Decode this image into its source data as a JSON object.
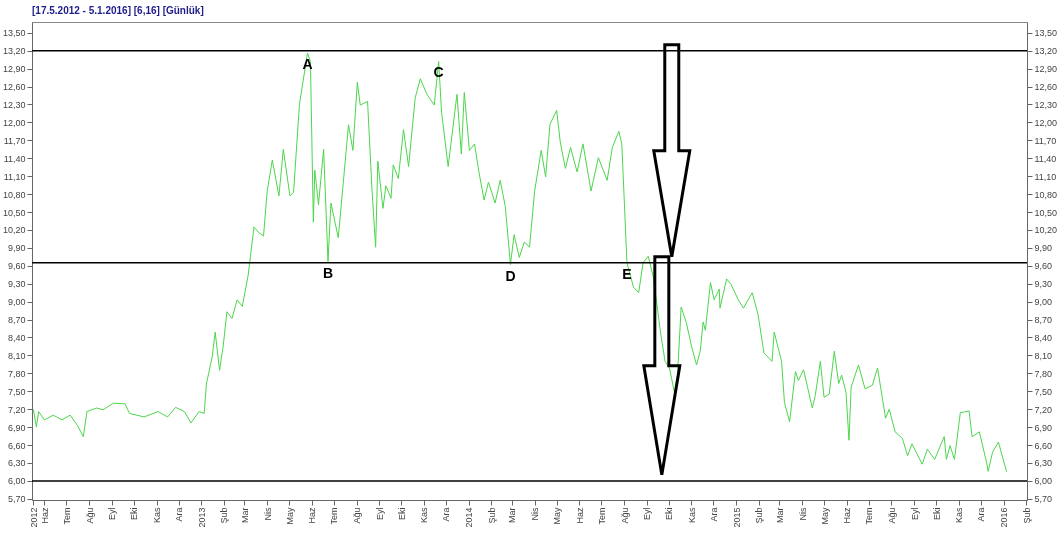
{
  "chart_data": {
    "type": "line",
    "title": "[17.5.2012 - 5.1.2016]  [6,16]  [Günlük]",
    "x": [
      "2012-05-17",
      "2012-05-21",
      "2012-05-24",
      "2012-06-01",
      "2012-06-13",
      "2012-06-25",
      "2012-07-06",
      "2012-07-16",
      "2012-07-24",
      "2012-07-29",
      "2012-08-11",
      "2012-08-20",
      "2012-09-03",
      "2012-09-19",
      "2012-09-25",
      "2012-10-15",
      "2012-11-03",
      "2012-11-16",
      "2012-11-27",
      "2012-12-09",
      "2012-12-18",
      "2012-12-29",
      "2013-01-05",
      "2013-01-08",
      "2013-01-16",
      "2013-01-20",
      "2013-01-26",
      "2013-01-31",
      "2013-02-05",
      "2013-02-12",
      "2013-02-19",
      "2013-02-26",
      "2013-03-06",
      "2013-03-14",
      "2013-03-20",
      "2013-03-27",
      "2013-04-01",
      "2013-04-08",
      "2013-04-17",
      "2013-04-23",
      "2013-05-02",
      "2013-05-07",
      "2013-05-15",
      "2013-05-26",
      "2013-05-30",
      "2013-06-03",
      "2013-06-05",
      "2013-06-10",
      "2013-06-17",
      "2013-06-23",
      "2013-06-27",
      "2013-07-07",
      "2013-07-21",
      "2013-07-27",
      "2013-08-02",
      "2013-08-06",
      "2013-08-16",
      "2013-08-22",
      "2013-08-27",
      "2013-08-30",
      "2013-09-06",
      "2013-09-10",
      "2013-09-17",
      "2013-09-20",
      "2013-09-27",
      "2013-10-04",
      "2013-10-11",
      "2013-10-20",
      "2013-10-27",
      "2013-11-05",
      "2013-11-15",
      "2013-11-21",
      "2013-11-25",
      "2013-12-04",
      "2013-12-16",
      "2013-12-22",
      "2013-12-26",
      "2014-01-02",
      "2014-01-09",
      "2014-01-15",
      "2014-01-22",
      "2014-01-28",
      "2014-02-06",
      "2014-02-13",
      "2014-02-20",
      "2014-02-27",
      "2014-03-04",
      "2014-03-11",
      "2014-03-18",
      "2014-03-25",
      "2014-04-01",
      "2014-04-10",
      "2014-04-16",
      "2014-04-22",
      "2014-05-01",
      "2014-05-06",
      "2014-05-13",
      "2014-05-20",
      "2014-05-29",
      "2014-06-06",
      "2014-06-17",
      "2014-06-27",
      "2014-07-09",
      "2014-07-16",
      "2014-07-25",
      "2014-07-29",
      "2014-08-05",
      "2014-08-14",
      "2014-08-21",
      "2014-08-27",
      "2014-09-03",
      "2014-09-10",
      "2014-09-20",
      "2014-09-26",
      "2014-10-02",
      "2014-10-09",
      "2014-10-13",
      "2014-10-18",
      "2014-10-25",
      "2014-11-01",
      "2014-11-08",
      "2014-11-13",
      "2014-11-17",
      "2014-11-20",
      "2014-11-27",
      "2014-12-02",
      "2014-12-09",
      "2014-12-10",
      "2014-12-19",
      "2014-12-25",
      "2015-01-04",
      "2015-01-11",
      "2015-01-23",
      "2015-01-31",
      "2015-02-08",
      "2015-02-19",
      "2015-02-22",
      "2015-03-04",
      "2015-03-08",
      "2015-03-15",
      "2015-03-23",
      "2015-03-27",
      "2015-04-03",
      "2015-04-15",
      "2015-04-19",
      "2015-04-26",
      "2015-05-01",
      "2015-05-08",
      "2015-05-15",
      "2015-05-21",
      "2015-05-25",
      "2015-05-31",
      "2015-06-04",
      "2015-06-07",
      "2015-06-17",
      "2015-06-26",
      "2015-07-06",
      "2015-07-13",
      "2015-07-24",
      "2015-07-29",
      "2015-08-06",
      "2015-08-16",
      "2015-08-23",
      "2015-08-29",
      "2015-09-12",
      "2015-09-19",
      "2015-09-29",
      "2015-10-12",
      "2015-10-15",
      "2015-10-20",
      "2015-10-26",
      "2015-11-03",
      "2015-11-15",
      "2015-11-19",
      "2015-11-29",
      "2015-12-09",
      "2015-12-11",
      "2015-12-17",
      "2015-12-25",
      "2016-01-05"
    ],
    "series": [
      {
        "color": "#4cd64c",
        "values": [
          7.19,
          6.9,
          7.16,
          7.02,
          7.1,
          7.02,
          7.1,
          6.93,
          6.74,
          7.16,
          7.22,
          7.19,
          7.3,
          7.29,
          7.13,
          7.07,
          7.16,
          7.07,
          7.23,
          7.16,
          6.97,
          7.16,
          7.13,
          7.62,
          8.08,
          8.49,
          7.85,
          8.26,
          8.83,
          8.72,
          9.03,
          8.92,
          9.44,
          10.25,
          10.16,
          10.1,
          10.85,
          11.37,
          10.77,
          11.55,
          10.77,
          10.83,
          12.3,
          13.16,
          13.02,
          10.33,
          11.2,
          10.62,
          11.55,
          9.67,
          10.65,
          10.07,
          11.96,
          11.53,
          12.67,
          12.29,
          12.35,
          10.88,
          9.91,
          11.35,
          10.56,
          10.94,
          10.73,
          11.29,
          11.06,
          11.88,
          11.26,
          12.41,
          12.73,
          12.47,
          12.29,
          13.02,
          12.17,
          11.26,
          12.47,
          11.47,
          12.5,
          11.53,
          11.64,
          11.17,
          10.7,
          11.0,
          10.65,
          11.03,
          10.59,
          9.62,
          10.12,
          9.74,
          10.0,
          9.91,
          10.85,
          11.53,
          11.09,
          11.97,
          12.2,
          11.67,
          11.23,
          11.58,
          11.17,
          11.64,
          10.85,
          11.41,
          11.03,
          11.58,
          11.85,
          11.64,
          9.65,
          9.24,
          9.15,
          9.65,
          9.76,
          9.41,
          8.47,
          8.0,
          7.89,
          7.47,
          7.77,
          8.91,
          8.65,
          8.26,
          7.94,
          8.17,
          8.66,
          8.52,
          9.32,
          9.03,
          9.21,
          8.89,
          9.38,
          9.29,
          9.03,
          8.89,
          9.15,
          8.78,
          8.14,
          8.0,
          8.49,
          8.0,
          7.31,
          6.99,
          7.83,
          7.68,
          7.86,
          7.22,
          7.43,
          8.0,
          7.4,
          7.45,
          8.17,
          7.63,
          7.77,
          7.48,
          6.68,
          7.57,
          7.94,
          7.54,
          7.6,
          7.89,
          7.05,
          7.2,
          6.82,
          6.71,
          6.42,
          6.62,
          6.28,
          6.53,
          6.36,
          6.74,
          6.36,
          6.59,
          6.36,
          7.14,
          7.17,
          6.74,
          6.82,
          6.3,
          6.16,
          6.48,
          6.65,
          6.16
        ]
      }
    ],
    "xlim": [
      "2012-05-15",
      "2016-02-02"
    ],
    "xticks": [
      {
        "value": "2012-05-17",
        "label": "2012"
      },
      {
        "value": "2012-06-01",
        "label": "Haz"
      },
      {
        "value": "2012-07-01",
        "label": "Tem"
      },
      {
        "value": "2012-08-01",
        "label": "Ağu"
      },
      {
        "value": "2012-09-01",
        "label": "Eyl"
      },
      {
        "value": "2012-10-01",
        "label": "Eki"
      },
      {
        "value": "2012-11-01",
        "label": "Kas"
      },
      {
        "value": "2012-12-01",
        "label": "Ara"
      },
      {
        "value": "2013-01-01",
        "label": "2013"
      },
      {
        "value": "2013-02-01",
        "label": "Şub"
      },
      {
        "value": "2013-03-01",
        "label": "Mar"
      },
      {
        "value": "2013-04-01",
        "label": "Nis"
      },
      {
        "value": "2013-05-01",
        "label": "May"
      },
      {
        "value": "2013-06-01",
        "label": "Haz"
      },
      {
        "value": "2013-07-01",
        "label": "Tem"
      },
      {
        "value": "2013-08-01",
        "label": "Ağu"
      },
      {
        "value": "2013-09-01",
        "label": "Eyl"
      },
      {
        "value": "2013-10-01",
        "label": "Eki"
      },
      {
        "value": "2013-11-01",
        "label": "Kas"
      },
      {
        "value": "2013-12-01",
        "label": "Ara"
      },
      {
        "value": "2014-01-01",
        "label": "2014"
      },
      {
        "value": "2014-02-01",
        "label": "Şub"
      },
      {
        "value": "2014-03-01",
        "label": "Mar"
      },
      {
        "value": "2014-04-01",
        "label": "Nis"
      },
      {
        "value": "2014-05-01",
        "label": "May"
      },
      {
        "value": "2014-06-01",
        "label": "Haz"
      },
      {
        "value": "2014-07-01",
        "label": "Tem"
      },
      {
        "value": "2014-08-01",
        "label": "Ağu"
      },
      {
        "value": "2014-09-01",
        "label": "Eyl"
      },
      {
        "value": "2014-10-01",
        "label": "Eki"
      },
      {
        "value": "2014-11-01",
        "label": "Kas"
      },
      {
        "value": "2014-12-01",
        "label": "Ara"
      },
      {
        "value": "2015-01-01",
        "label": "2015"
      },
      {
        "value": "2015-02-01",
        "label": "Şub"
      },
      {
        "value": "2015-03-01",
        "label": "Mar"
      },
      {
        "value": "2015-04-01",
        "label": "Nis"
      },
      {
        "value": "2015-05-01",
        "label": "May"
      },
      {
        "value": "2015-06-01",
        "label": "Haz"
      },
      {
        "value": "2015-07-01",
        "label": "Tem"
      },
      {
        "value": "2015-08-01",
        "label": "Ağu"
      },
      {
        "value": "2015-09-01",
        "label": "Eyl"
      },
      {
        "value": "2015-10-01",
        "label": "Eki"
      },
      {
        "value": "2015-11-01",
        "label": "Kas"
      },
      {
        "value": "2015-12-01",
        "label": "Ara"
      },
      {
        "value": "2016-01-01",
        "label": "2016"
      },
      {
        "value": "2016-02-01",
        "label": "Şub"
      }
    ],
    "ylim": [
      5.68,
      13.68
    ],
    "yticks": [
      {
        "value": 5.7,
        "label": "5,70"
      },
      {
        "value": 6.0,
        "label": "6,00"
      },
      {
        "value": 6.3,
        "label": "6,30"
      },
      {
        "value": 6.6,
        "label": "6,60"
      },
      {
        "value": 6.9,
        "label": "6,90"
      },
      {
        "value": 7.2,
        "label": "7,20"
      },
      {
        "value": 7.5,
        "label": "7,50"
      },
      {
        "value": 7.8,
        "label": "7,80"
      },
      {
        "value": 8.1,
        "label": "8,10"
      },
      {
        "value": 8.4,
        "label": "8,40"
      },
      {
        "value": 8.7,
        "label": "8,70"
      },
      {
        "value": 9.0,
        "label": "9,00"
      },
      {
        "value": 9.3,
        "label": "9,30"
      },
      {
        "value": 9.6,
        "label": "9,60"
      },
      {
        "value": 9.9,
        "label": "9,90"
      },
      {
        "value": 10.2,
        "label": "10,20"
      },
      {
        "value": 10.5,
        "label": "10,50"
      },
      {
        "value": 10.8,
        "label": "10,80"
      },
      {
        "value": 11.1,
        "label": "11,10"
      },
      {
        "value": 11.4,
        "label": "11,40"
      },
      {
        "value": 11.7,
        "label": "11,70"
      },
      {
        "value": 12.0,
        "label": "12,00"
      },
      {
        "value": 12.3,
        "label": "12,30"
      },
      {
        "value": 12.6,
        "label": "12,60"
      },
      {
        "value": 12.9,
        "label": "12,90"
      },
      {
        "value": 13.2,
        "label": "13,20"
      },
      {
        "value": 13.5,
        "label": "13,50"
      }
    ],
    "y2lim": [
      5.68,
      13.68
    ],
    "y2ticks": [
      {
        "value": 5.7,
        "label": "5,70"
      },
      {
        "value": 6.0,
        "label": "6,00"
      },
      {
        "value": 6.3,
        "label": "6,30"
      },
      {
        "value": 6.6,
        "label": "6,60"
      },
      {
        "value": 6.9,
        "label": "6,90"
      },
      {
        "value": 7.2,
        "label": "7,20"
      },
      {
        "value": 7.5,
        "label": "7,50"
      },
      {
        "value": 7.8,
        "label": "7,80"
      },
      {
        "value": 8.1,
        "label": "8,10"
      },
      {
        "value": 8.4,
        "label": "8,40"
      },
      {
        "value": 8.7,
        "label": "8,70"
      },
      {
        "value": 9.0,
        "label": "9,00"
      },
      {
        "value": 9.3,
        "label": "9,30"
      },
      {
        "value": 9.6,
        "label": "9,60"
      },
      {
        "value": 9.9,
        "label": "9,90"
      },
      {
        "value": 10.2,
        "label": "10,20"
      },
      {
        "value": 10.5,
        "label": "10,50"
      },
      {
        "value": 10.8,
        "label": "10,80"
      },
      {
        "value": 11.1,
        "label": "11,10"
      },
      {
        "value": 11.4,
        "label": "11,40"
      },
      {
        "value": 11.7,
        "label": "11,70"
      },
      {
        "value": 12.0,
        "label": "12,00"
      },
      {
        "value": 12.3,
        "label": "12,30"
      },
      {
        "value": 12.6,
        "label": "12,60"
      },
      {
        "value": 12.9,
        "label": "12,90"
      },
      {
        "value": 13.2,
        "label": "13,20"
      },
      {
        "value": 13.5,
        "label": "13,50"
      }
    ],
    "ref_lines": [
      {
        "axis": "y",
        "value": 13.2,
        "color": "#000000"
      },
      {
        "axis": "y",
        "value": 9.65,
        "color": "#000000"
      },
      {
        "axis": "y",
        "value": 6.0,
        "color": "#000000"
      }
    ],
    "annotations": [
      {
        "text": "A",
        "x": "2013-05-26",
        "y": 13.16
      },
      {
        "text": "B",
        "x": "2013-06-23",
        "y": 9.67
      },
      {
        "text": "C",
        "x": "2013-11-21",
        "y": 13.02
      },
      {
        "text": "D",
        "x": "2014-02-27",
        "y": 9.62
      },
      {
        "text": "E",
        "x": "2014-08-05",
        "y": 9.65
      }
    ],
    "grid": false
  }
}
